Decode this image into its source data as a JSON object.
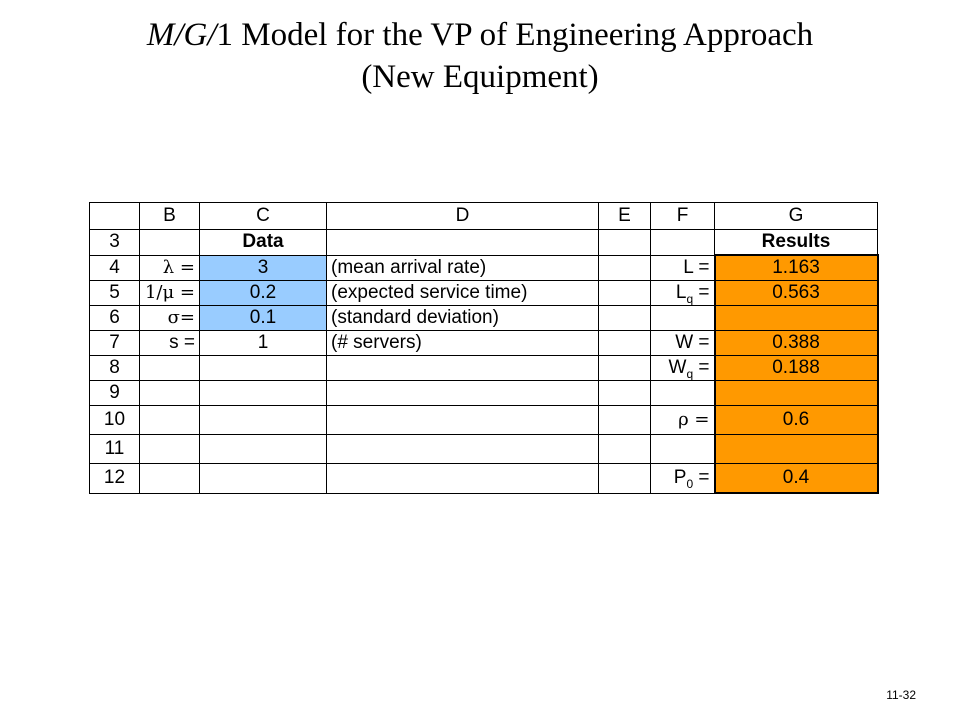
{
  "title": {
    "italic_part": "M/G/",
    "rest_line1": "1 Model for the VP of Engineering Approach",
    "line2": "(New Equipment)"
  },
  "columns": [
    "B",
    "C",
    "D",
    "E",
    "F",
    "G"
  ],
  "rows": [
    {
      "num": "3",
      "b": "",
      "c": "Data",
      "d": "",
      "f": "",
      "g": "Results"
    },
    {
      "num": "4",
      "b": "λ =",
      "c": "3",
      "d": "(mean arrival rate)",
      "f_main": "L =",
      "f_sub": "",
      "f_tail": "",
      "g": "1.163"
    },
    {
      "num": "5",
      "b": "1/μ =",
      "c": "0.2",
      "d": "(expected service time)",
      "f_main": "L",
      "f_sub": "q",
      "f_tail": " =",
      "g": "0.563"
    },
    {
      "num": "6",
      "b": "σ=",
      "c": "0.1",
      "d": "(standard deviation)",
      "f_main": "",
      "f_sub": "",
      "f_tail": "",
      "g": ""
    },
    {
      "num": "7",
      "b": "s =",
      "c": "1",
      "d": "(# servers)",
      "f_main": "W =",
      "f_sub": "",
      "f_tail": "",
      "g": "0.388"
    },
    {
      "num": "8",
      "b": "",
      "c": "",
      "d": "",
      "f_main": "W",
      "f_sub": "q",
      "f_tail": " =",
      "g": "0.188"
    },
    {
      "num": "9",
      "b": "",
      "c": "",
      "d": "",
      "f_main": "",
      "f_sub": "",
      "f_tail": "",
      "g": ""
    },
    {
      "num": "10",
      "b": "",
      "c": "",
      "d": "",
      "f_main": "ρ =",
      "f_sub": "",
      "f_tail": "",
      "g": "0.6"
    },
    {
      "num": "11",
      "b": "",
      "c": "",
      "d": "",
      "f_main": "",
      "f_sub": "",
      "f_tail": "",
      "g": ""
    },
    {
      "num": "12",
      "b": "",
      "c": "",
      "d": "",
      "f_main": "P",
      "f_sub": "0",
      "f_tail": " =",
      "g": "0.4"
    }
  ],
  "footer": "11-32",
  "colors": {
    "input_fill": "#99ccff",
    "result_fill": "#ff9900"
  }
}
